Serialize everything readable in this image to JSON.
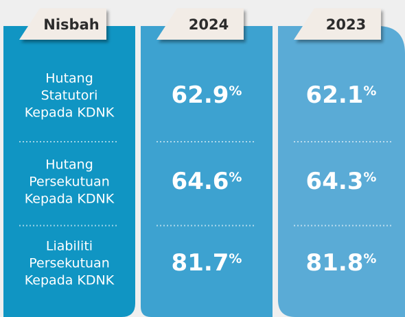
{
  "table": {
    "header": [
      "Nisbah",
      "2024",
      "2023"
    ],
    "rows": [
      {
        "label": [
          "Hutang",
          "Statutori",
          "Kepada KDNK"
        ],
        "values": [
          {
            "value": 62.9,
            "unit": "%"
          },
          {
            "value": 62.1,
            "unit": "%"
          }
        ]
      },
      {
        "label": [
          "Hutang",
          "Persekutuan",
          "Kepada KDNK"
        ],
        "values": [
          {
            "value": 64.6,
            "unit": "%"
          },
          {
            "value": 64.3,
            "unit": "%"
          }
        ]
      },
      {
        "label": [
          "Liabiliti",
          "Persekutuan",
          "Kepada KDNK"
        ],
        "values": [
          {
            "value": 81.7,
            "unit": "%"
          },
          {
            "value": 81.8,
            "unit": "%"
          }
        ]
      }
    ]
  }
}
